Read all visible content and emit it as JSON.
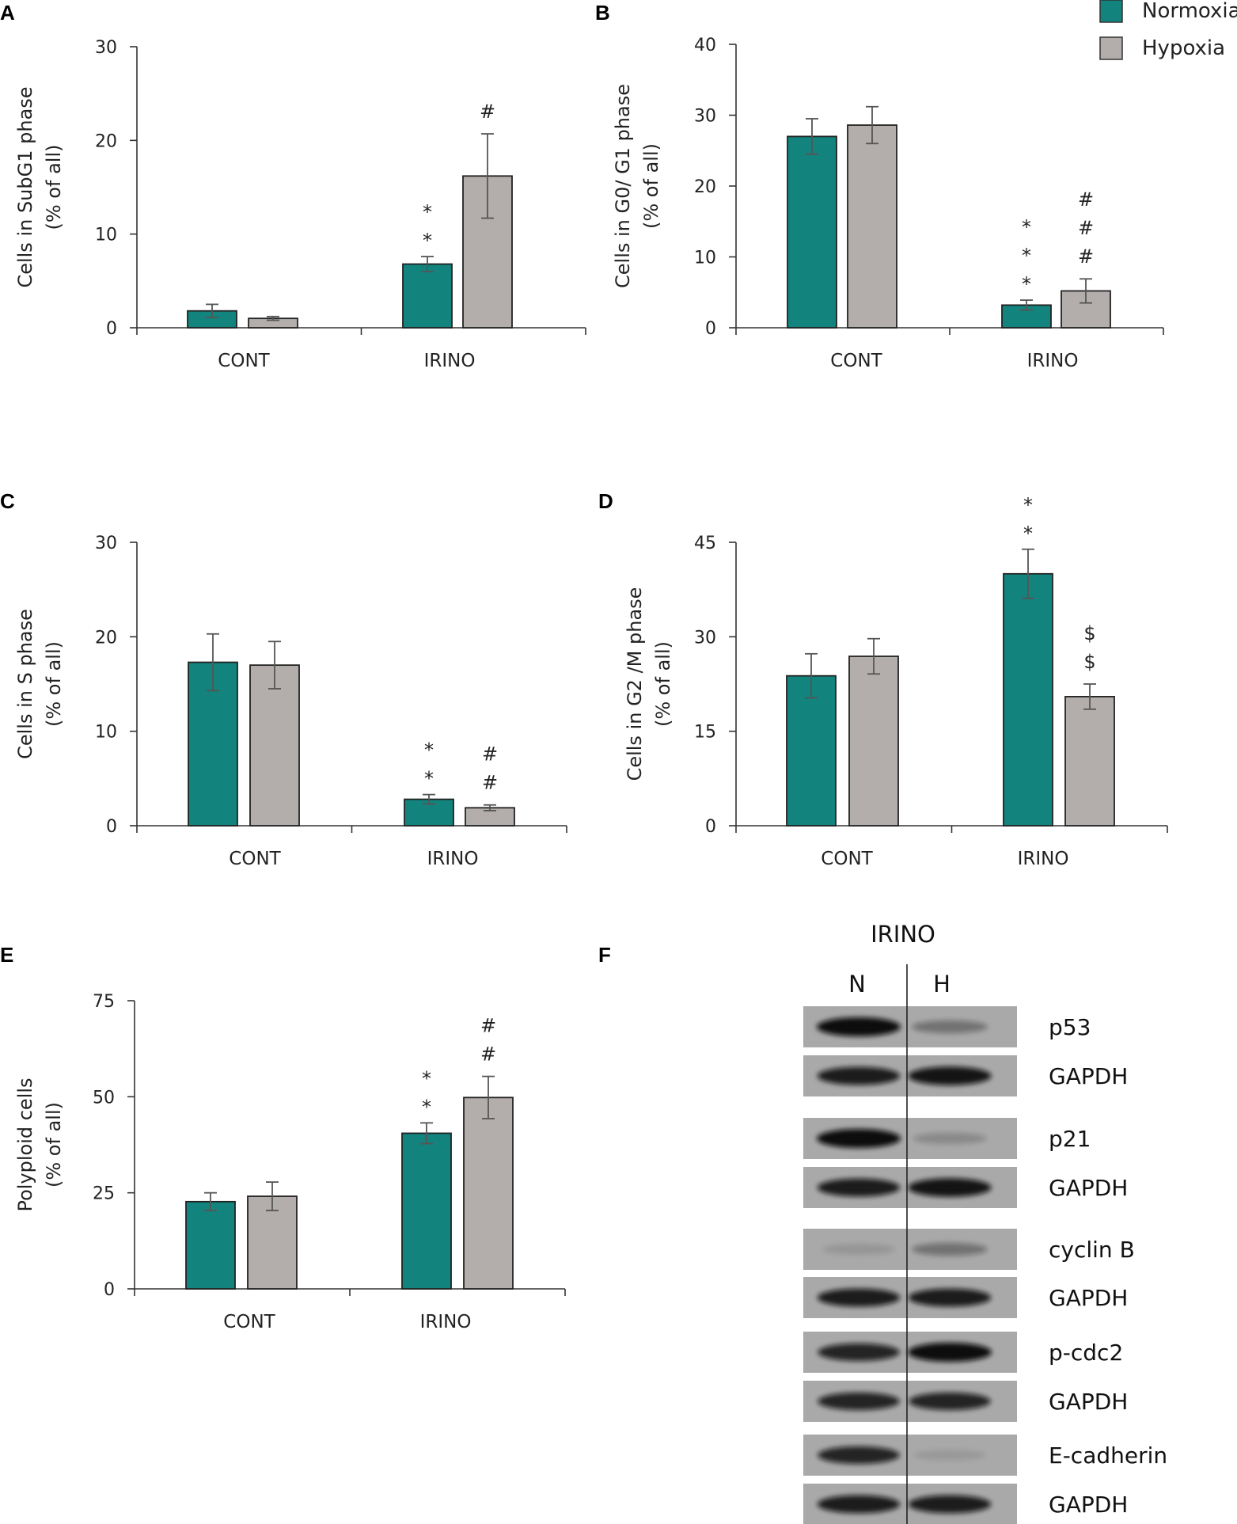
{
  "colors": {
    "normoxia": "#12837d",
    "hypoxia": "#b3adab",
    "axis": "#333333",
    "error": "#555555"
  },
  "legend": [
    {
      "label": "Normoxia",
      "color": "#12837d"
    },
    {
      "label": "Hypoxia",
      "color": "#b3adab"
    }
  ],
  "chart_data": [
    {
      "panel": "A",
      "type": "bar",
      "ylabel_line1": "Cells in SubG1 phase",
      "ylabel_line2": "(% of all)",
      "categories": [
        "CONT",
        "IRINO"
      ],
      "ylim": [
        0,
        30
      ],
      "yticks": [
        "0",
        "10",
        "20",
        "30"
      ],
      "series": [
        {
          "name": "Normoxia",
          "values": [
            1.8,
            6.8
          ],
          "errors": [
            0.7,
            0.8
          ]
        },
        {
          "name": "Hypoxia",
          "values": [
            1.0,
            16.2
          ],
          "errors": [
            0.2,
            4.5
          ]
        }
      ],
      "annotations": [
        {
          "category": 1,
          "series": 0,
          "marks": [
            "*",
            "*"
          ]
        },
        {
          "category": 1,
          "series": 1,
          "marks": [
            "#"
          ]
        }
      ]
    },
    {
      "panel": "B",
      "type": "bar",
      "ylabel_line1": "Cells in G0/ G1 phase",
      "ylabel_line2": "(% of all)",
      "categories": [
        "CONT",
        "IRINO"
      ],
      "ylim": [
        0,
        40
      ],
      "yticks": [
        "0",
        "10",
        "20",
        "30",
        "40"
      ],
      "series": [
        {
          "name": "Normoxia",
          "values": [
            27.0,
            3.2
          ],
          "errors": [
            2.5,
            0.7
          ]
        },
        {
          "name": "Hypoxia",
          "values": [
            28.6,
            5.2
          ],
          "errors": [
            2.6,
            1.7
          ]
        }
      ],
      "annotations": [
        {
          "category": 1,
          "series": 0,
          "marks": [
            "*",
            "*",
            "*"
          ]
        },
        {
          "category": 1,
          "series": 1,
          "marks": [
            "#",
            "#",
            "#"
          ]
        }
      ]
    },
    {
      "panel": "C",
      "type": "bar",
      "ylabel_line1": "Cells in S phase",
      "ylabel_line2": "(% of all)",
      "categories": [
        "CONT",
        "IRINO"
      ],
      "ylim": [
        0,
        30
      ],
      "yticks": [
        "0",
        "10",
        "20",
        "30"
      ],
      "series": [
        {
          "name": "Normoxia",
          "values": [
            17.3,
            2.8
          ],
          "errors": [
            3.0,
            0.5
          ]
        },
        {
          "name": "Hypoxia",
          "values": [
            17.0,
            1.9
          ],
          "errors": [
            2.5,
            0.3
          ]
        }
      ],
      "annotations": [
        {
          "category": 1,
          "series": 0,
          "marks": [
            "*",
            "*"
          ]
        },
        {
          "category": 1,
          "series": 1,
          "marks": [
            "#",
            "#"
          ]
        }
      ]
    },
    {
      "panel": "D",
      "type": "bar",
      "ylabel_line1": "Cells in G2 /M phase",
      "ylabel_line2": "(% of all)",
      "categories": [
        "CONT",
        "IRINO"
      ],
      "ylim": [
        0,
        45
      ],
      "yticks": [
        "0",
        "15",
        "30",
        "45"
      ],
      "series": [
        {
          "name": "Normoxia",
          "values": [
            23.8,
            40.0
          ],
          "errors": [
            3.5,
            3.9
          ]
        },
        {
          "name": "Hypoxia",
          "values": [
            26.9,
            20.5
          ],
          "errors": [
            2.8,
            2.0
          ]
        }
      ],
      "annotations": [
        {
          "category": 1,
          "series": 0,
          "marks": [
            "*",
            "*"
          ]
        },
        {
          "category": 1,
          "series": 1,
          "marks": [
            "$",
            "$"
          ]
        }
      ]
    },
    {
      "panel": "E",
      "type": "bar",
      "ylabel_line1": "Polyploid cells",
      "ylabel_line2": "(% of all)",
      "categories": [
        "CONT",
        "IRINO"
      ],
      "ylim": [
        0,
        75
      ],
      "yticks": [
        "0",
        "25",
        "50",
        "75"
      ],
      "series": [
        {
          "name": "Normoxia",
          "values": [
            22.7,
            40.5
          ],
          "errors": [
            2.3,
            2.7
          ]
        },
        {
          "name": "Hypoxia",
          "values": [
            24.1,
            49.8
          ],
          "errors": [
            3.7,
            5.5
          ]
        }
      ],
      "annotations": [
        {
          "category": 1,
          "series": 0,
          "marks": [
            "*",
            "*"
          ]
        },
        {
          "category": 1,
          "series": 1,
          "marks": [
            "#",
            "#"
          ]
        }
      ]
    }
  ],
  "western_blot": {
    "panel": "F",
    "treatment": "IRINO",
    "lanes": [
      "N",
      "H"
    ],
    "groups": [
      {
        "protein": "p53",
        "intensity": [
          1.0,
          0.35
        ],
        "control": "GAPDH",
        "control_intensity": [
          0.9,
          0.95
        ]
      },
      {
        "protein": "p21",
        "intensity": [
          1.0,
          0.2
        ],
        "control": "GAPDH",
        "control_intensity": [
          0.9,
          0.95
        ]
      },
      {
        "protein": "cyclin B",
        "intensity": [
          0.12,
          0.35
        ],
        "control": "GAPDH",
        "control_intensity": [
          0.9,
          0.9
        ]
      },
      {
        "protein": "p-cdc2",
        "intensity": [
          0.85,
          1.0
        ],
        "control": "GAPDH",
        "control_intensity": [
          0.85,
          0.85
        ]
      },
      {
        "protein": "E-cadherin",
        "intensity": [
          0.85,
          0.1
        ],
        "control": "GAPDH",
        "control_intensity": [
          0.9,
          0.9
        ]
      }
    ]
  }
}
